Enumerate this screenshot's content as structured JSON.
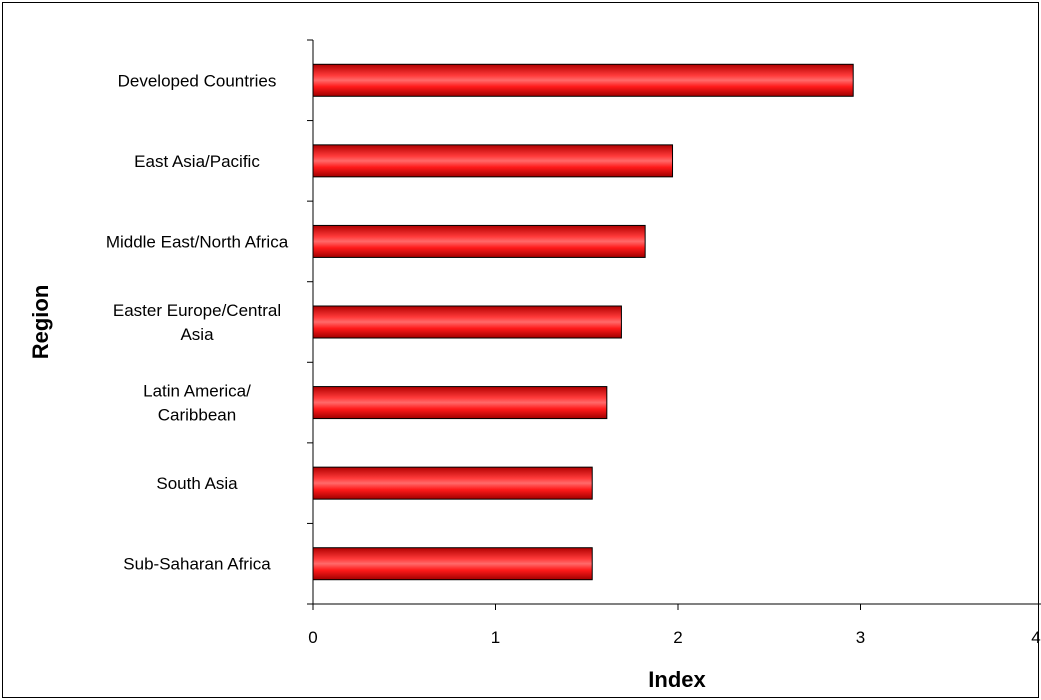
{
  "chart_data": {
    "type": "bar",
    "orientation": "horizontal",
    "title": "",
    "xlabel": "Index",
    "ylabel": "Region",
    "xlim": [
      0,
      4
    ],
    "x_ticks": [
      "0",
      "1",
      "2",
      "3",
      "4"
    ],
    "grid": false,
    "legend": "none",
    "categories": [
      [
        "Developed Countries"
      ],
      [
        "East Asia/Pacific"
      ],
      [
        "Middle East/North Africa"
      ],
      [
        "Easter Europe/Central",
        "Asia"
      ],
      [
        "Latin America/",
        "Caribbean"
      ],
      [
        "South Asia"
      ],
      [
        "Sub-Saharan Africa"
      ]
    ],
    "values": [
      2.96,
      1.97,
      1.82,
      1.69,
      1.61,
      1.53,
      1.53
    ],
    "bar_color": "#ff0000",
    "bar_highlight_color": "#ff6a6a",
    "bar_shadow_color": "#b00000"
  }
}
